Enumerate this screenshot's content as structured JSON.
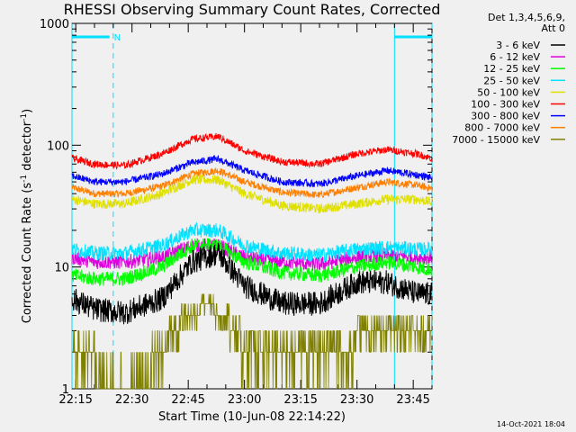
{
  "chart_data": {
    "type": "line",
    "title": "RHESSI Observing Summary Count Rates, Corrected",
    "xlabel": "Start Time (10-Jun-08 22:14:22)",
    "ylabel_parts": [
      "Corrected Count Rate (s",
      "-1",
      " detector",
      "-1",
      ")"
    ],
    "y_scale": "log",
    "ylim": [
      1,
      1000
    ],
    "y_ticks": [
      {
        "value": 1,
        "label": "1"
      },
      {
        "value": 10,
        "label": "10"
      },
      {
        "value": 100,
        "label": "100"
      },
      {
        "value": 1000,
        "label": "1000"
      }
    ],
    "x_range_minutes": [
      0,
      96
    ],
    "x_ticks": [
      {
        "label": "22:15",
        "value": "22:15"
      },
      {
        "label": "22:30",
        "value": "22:30"
      },
      {
        "label": "22:45",
        "value": "22:45"
      },
      {
        "label": "23:00",
        "value": "23:00"
      },
      {
        "label": "23:15",
        "value": "23:15"
      },
      {
        "label": "23:30",
        "value": "23:30"
      },
      {
        "label": "23:45",
        "value": "23:45"
      }
    ],
    "legend_header": [
      "Det 1,3,4,5,6,9,",
      "Att 0"
    ],
    "series": [
      {
        "name": "3 - 6 keV",
        "color": "#000000",
        "time": [
          "22:14",
          "22:20",
          "22:28",
          "22:38",
          "22:46",
          "22:53",
          "23:00",
          "23:10",
          "23:20",
          "23:30",
          "23:38",
          "23:46",
          "23:50"
        ],
        "values": [
          5.5,
          4.5,
          4.2,
          5.5,
          11,
          13,
          7,
          5,
          5,
          7.5,
          7.5,
          6,
          6
        ]
      },
      {
        "name": "6 - 12 keV",
        "color": "#dd00dd",
        "time": [
          "22:14",
          "22:20",
          "22:28",
          "22:38",
          "22:46",
          "22:53",
          "23:00",
          "23:10",
          "23:20",
          "23:30",
          "23:38",
          "23:46",
          "23:50"
        ],
        "values": [
          12,
          11,
          11,
          12,
          15,
          15,
          12,
          11,
          10.5,
          12,
          12.5,
          12,
          12
        ]
      },
      {
        "name": "12 - 25 keV",
        "color": "#00ff00",
        "time": [
          "22:14",
          "22:20",
          "22:28",
          "22:38",
          "22:46",
          "22:53",
          "23:00",
          "23:10",
          "23:20",
          "23:30",
          "23:38",
          "23:46",
          "23:50"
        ],
        "values": [
          8.5,
          8,
          8,
          10,
          15,
          15,
          11,
          9,
          8.5,
          10,
          11,
          10,
          9.5
        ]
      },
      {
        "name": "25 - 50 keV",
        "color": "#00e0ff",
        "time": [
          "22:14",
          "22:20",
          "22:28",
          "22:38",
          "22:46",
          "22:53",
          "23:00",
          "23:10",
          "23:20",
          "23:30",
          "23:38",
          "23:46",
          "23:50"
        ],
        "values": [
          14,
          13,
          13,
          15,
          20,
          20,
          15,
          13,
          12.5,
          14,
          14.5,
          14,
          14
        ]
      },
      {
        "name": "50 - 100 keV",
        "color": "#e0e000",
        "time": [
          "22:14",
          "22:20",
          "22:28",
          "22:38",
          "22:46",
          "22:53",
          "23:00",
          "23:10",
          "23:20",
          "23:30",
          "23:38",
          "23:46",
          "23:50"
        ],
        "values": [
          36,
          33,
          33,
          40,
          52,
          52,
          40,
          32,
          30,
          33,
          36,
          36,
          34
        ]
      },
      {
        "name": "100 - 300 keV",
        "color": "#ff0000",
        "time": [
          "22:14",
          "22:20",
          "22:28",
          "22:38",
          "22:46",
          "22:53",
          "23:00",
          "23:10",
          "23:20",
          "23:30",
          "23:38",
          "23:46",
          "23:50"
        ],
        "values": [
          78,
          70,
          68,
          85,
          112,
          118,
          90,
          73,
          70,
          85,
          92,
          85,
          78
        ]
      },
      {
        "name": "300 - 800 keV",
        "color": "#0000ff",
        "time": [
          "22:14",
          "22:20",
          "22:28",
          "22:38",
          "22:46",
          "22:53",
          "23:00",
          "23:10",
          "23:20",
          "23:30",
          "23:38",
          "23:46",
          "23:50"
        ],
        "values": [
          56,
          50,
          50,
          58,
          72,
          77,
          62,
          50,
          48,
          56,
          62,
          57,
          54
        ]
      },
      {
        "name": "800 - 7000 keV",
        "color": "#ff7f00",
        "time": [
          "22:14",
          "22:20",
          "22:28",
          "22:38",
          "22:46",
          "22:53",
          "23:00",
          "23:10",
          "23:20",
          "23:30",
          "23:38",
          "23:46",
          "23:50"
        ],
        "values": [
          45,
          40,
          40,
          46,
          58,
          62,
          50,
          41,
          39,
          45,
          50,
          47,
          44
        ]
      },
      {
        "name": "7000 - 15000 keV",
        "color": "#808000",
        "time": [
          "22:14",
          "22:20",
          "22:28",
          "22:36",
          "22:40",
          "22:44",
          "22:50",
          "22:56",
          "23:00",
          "23:08",
          "23:20",
          "23:30",
          "23:40",
          "23:50"
        ],
        "values": [
          2,
          1.5,
          1.0,
          1.6,
          2.6,
          3.8,
          5,
          3.5,
          2.2,
          1.5,
          1.6,
          2.6,
          2.6,
          2.6
        ]
      }
    ],
    "annotations": {
      "night_label": "N",
      "night_bars_time": [
        [
          "22:14",
          "22:24"
        ],
        [
          "23:40",
          "23:50"
        ]
      ],
      "dashed_lines_time": [
        "22:25",
        "23:50"
      ],
      "solid_lines_time": [
        "22:14",
        "23:40"
      ]
    }
  },
  "footer": {
    "date": "14-Oct-2021 18:04"
  }
}
